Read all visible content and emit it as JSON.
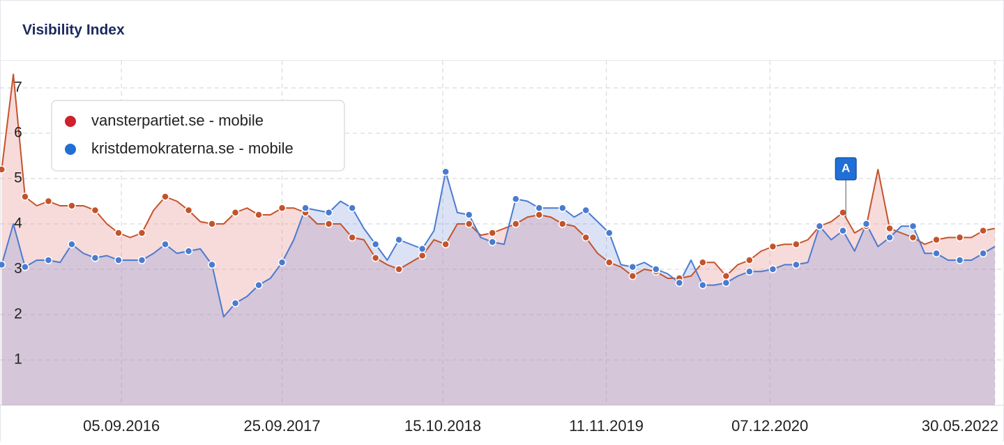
{
  "chart_data": {
    "type": "area",
    "title": "Visibility Index",
    "x": [
      "2015-11-23",
      "2015-12-21",
      "2016-01-18",
      "2016-02-15",
      "2016-03-14",
      "2016-04-11",
      "2016-05-09",
      "2016-06-06",
      "2016-07-04",
      "2016-08-01",
      "2016-08-29",
      "2016-09-26",
      "2016-10-24",
      "2016-11-21",
      "2016-12-19",
      "2017-01-16",
      "2017-02-13",
      "2017-03-13",
      "2017-04-10",
      "2017-05-08",
      "2017-06-05",
      "2017-07-03",
      "2017-07-31",
      "2017-08-28",
      "2017-09-25",
      "2017-10-23",
      "2017-11-20",
      "2017-12-18",
      "2018-01-15",
      "2018-02-12",
      "2018-03-12",
      "2018-04-09",
      "2018-05-07",
      "2018-06-04",
      "2018-07-02",
      "2018-07-30",
      "2018-08-27",
      "2018-09-24",
      "2018-10-22",
      "2018-11-19",
      "2018-12-17",
      "2019-01-14",
      "2019-02-11",
      "2019-03-11",
      "2019-04-08",
      "2019-05-06",
      "2019-06-03",
      "2019-07-01",
      "2019-07-29",
      "2019-08-26",
      "2019-09-23",
      "2019-10-21",
      "2019-11-18",
      "2019-12-16",
      "2020-01-13",
      "2020-02-10",
      "2020-03-09",
      "2020-04-06",
      "2020-05-04",
      "2020-06-01",
      "2020-06-29",
      "2020-07-27",
      "2020-08-24",
      "2020-09-21",
      "2020-10-19",
      "2020-11-16",
      "2020-12-14",
      "2021-01-11",
      "2021-02-08",
      "2021-03-08",
      "2021-04-05",
      "2021-05-03",
      "2021-05-31",
      "2021-06-28",
      "2021-07-26",
      "2021-08-23",
      "2021-09-20",
      "2021-10-18",
      "2021-11-15",
      "2021-12-13",
      "2022-01-10",
      "2022-02-07",
      "2022-03-07",
      "2022-04-04",
      "2022-05-02",
      "2022-05-30"
    ],
    "series": [
      {
        "name": "vansterpartiet.se - mobile",
        "color": "#c4532b",
        "legend_color": "#d0202e",
        "fill": "rgba(232,150,150,0.35)",
        "values": [
          5.2,
          7.3,
          4.6,
          4.4,
          4.5,
          4.4,
          4.4,
          4.4,
          4.3,
          4.0,
          3.8,
          3.7,
          3.8,
          4.3,
          4.6,
          4.5,
          4.3,
          4.05,
          4.0,
          4.0,
          4.25,
          4.35,
          4.2,
          4.2,
          4.35,
          4.35,
          4.25,
          4.0,
          4.0,
          4.0,
          3.7,
          3.65,
          3.25,
          3.1,
          3.0,
          3.15,
          3.3,
          3.65,
          3.55,
          4.0,
          4.0,
          3.75,
          3.8,
          3.9,
          4.0,
          4.15,
          4.2,
          4.15,
          4.0,
          3.95,
          3.7,
          3.35,
          3.15,
          3.05,
          2.85,
          3.0,
          2.95,
          2.8,
          2.8,
          2.85,
          3.15,
          3.15,
          2.85,
          3.1,
          3.2,
          3.4,
          3.5,
          3.55,
          3.55,
          3.65,
          3.95,
          4.05,
          4.25,
          3.8,
          3.95,
          5.2,
          3.9,
          3.8,
          3.7,
          3.55,
          3.65,
          3.7,
          3.7,
          3.7,
          3.85,
          3.9
        ]
      },
      {
        "name": "kristdemokraterna.se - mobile",
        "color": "#4a7bd0",
        "legend_color": "#1f6fd6",
        "fill": "rgba(110,140,215,0.25)",
        "values": [
          3.1,
          4.0,
          3.05,
          3.2,
          3.2,
          3.15,
          3.55,
          3.35,
          3.25,
          3.3,
          3.2,
          3.2,
          3.2,
          3.35,
          3.55,
          3.35,
          3.4,
          3.45,
          3.1,
          1.95,
          2.25,
          2.4,
          2.65,
          2.8,
          3.15,
          3.65,
          4.35,
          4.3,
          4.25,
          4.5,
          4.35,
          3.9,
          3.55,
          3.2,
          3.65,
          3.55,
          3.45,
          3.85,
          5.15,
          4.25,
          4.2,
          3.7,
          3.6,
          3.55,
          4.55,
          4.5,
          4.35,
          4.35,
          4.35,
          4.15,
          4.3,
          4.05,
          3.8,
          3.1,
          3.05,
          3.15,
          3.0,
          2.9,
          2.7,
          3.2,
          2.65,
          2.65,
          2.7,
          2.85,
          2.95,
          2.95,
          3.0,
          3.1,
          3.1,
          3.15,
          3.95,
          3.65,
          3.85,
          3.4,
          4.0,
          3.5,
          3.7,
          3.95,
          3.95,
          3.35,
          3.35,
          3.2,
          3.2,
          3.2,
          3.35,
          3.5
        ]
      }
    ],
    "xlim": [
      "2015-11-19",
      "2022-06-21"
    ],
    "xticks": [
      {
        "value": "2016-09-05",
        "label": "05.09.2016"
      },
      {
        "value": "2017-09-25",
        "label": "25.09.2017"
      },
      {
        "value": "2018-10-15",
        "label": "15.10.2018"
      },
      {
        "value": "2019-11-11",
        "label": "11.11.2019"
      },
      {
        "value": "2020-12-07",
        "label": "07.12.2020"
      },
      {
        "value": "2022-05-30",
        "label": "30.05.2022"
      }
    ],
    "ylim": [
      0,
      7.6
    ],
    "yticks": [
      1,
      2,
      3,
      4,
      5,
      6,
      7
    ],
    "grid": true,
    "legend_position": "upper left",
    "annotations": [
      {
        "x": "2021-06-07",
        "text": "A"
      }
    ]
  }
}
